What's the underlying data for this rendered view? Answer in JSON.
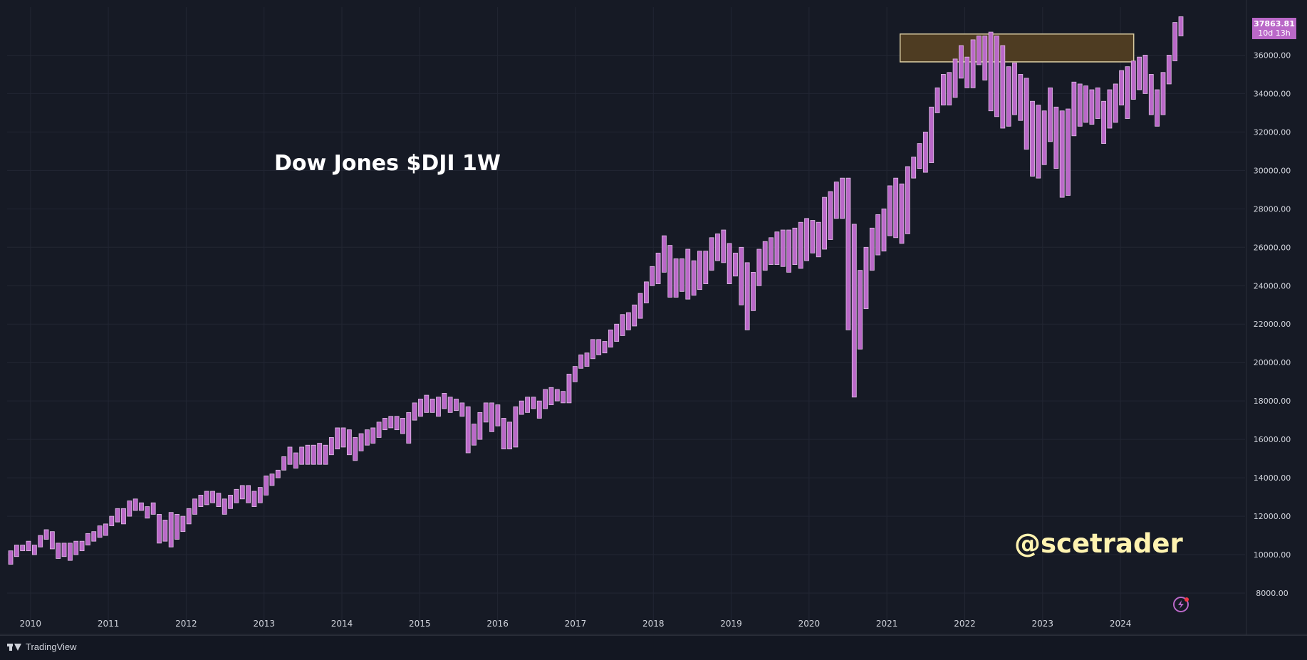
{
  "chart_data": {
    "type": "candlestick",
    "title": "Dow Jones $DJI 1W",
    "watermark_handle": "@scetrader",
    "brand": "TradingView",
    "last_price_label": "37863.81",
    "countdown_label": "10d 13h",
    "y_ticks": [
      "8000.00",
      "10000.00",
      "12000.00",
      "14000.00",
      "16000.00",
      "18000.00",
      "20000.00",
      "22000.00",
      "24000.00",
      "26000.00",
      "28000.00",
      "30000.00",
      "32000.00",
      "34000.00",
      "36000.00"
    ],
    "y_range": [
      7000,
      38500
    ],
    "x_range": [
      2009.7,
      2025.6
    ],
    "x_ticks": [
      "2010",
      "2011",
      "2012",
      "2013",
      "2014",
      "2015",
      "2016",
      "2017",
      "2018",
      "2019",
      "2020",
      "2021",
      "2022",
      "2023",
      "2024"
    ],
    "colors": {
      "background": "#161a25",
      "candle_fill": "#ba68c8",
      "candle_border": "#e1bee7",
      "zone_fill": "#4e3c22",
      "zone_border": "#d8caa0",
      "title": "#ffffff",
      "handle": "#fff3b0",
      "axis_text": "#d1d4dc",
      "grid": "#222633"
    },
    "resistance_zone": {
      "x_start": 2021.17,
      "x_end": 2024.17,
      "y_low": 35650,
      "y_high": 37100
    },
    "candles": [
      [
        9500,
        10200
      ],
      [
        9900,
        10500
      ],
      [
        10200,
        10500
      ],
      [
        10200,
        10700
      ],
      [
        10000,
        10500
      ],
      [
        10400,
        11000
      ],
      [
        10800,
        11300
      ],
      [
        10300,
        11200
      ],
      [
        9800,
        10600
      ],
      [
        9900,
        10600
      ],
      [
        9700,
        10600
      ],
      [
        10000,
        10700
      ],
      [
        10200,
        10700
      ],
      [
        10500,
        11100
      ],
      [
        10700,
        11200
      ],
      [
        10900,
        11500
      ],
      [
        11000,
        11600
      ],
      [
        11500,
        12000
      ],
      [
        11700,
        12400
      ],
      [
        11600,
        12400
      ],
      [
        12000,
        12800
      ],
      [
        12300,
        12900
      ],
      [
        12300,
        12700
      ],
      [
        11900,
        12500
      ],
      [
        12100,
        12700
      ],
      [
        10600,
        12100
      ],
      [
        10700,
        11800
      ],
      [
        10400,
        12200
      ],
      [
        10800,
        12100
      ],
      [
        11200,
        12000
      ],
      [
        11600,
        12400
      ],
      [
        12100,
        12900
      ],
      [
        12500,
        13100
      ],
      [
        12600,
        13300
      ],
      [
        12700,
        13300
      ],
      [
        12500,
        13200
      ],
      [
        12100,
        12900
      ],
      [
        12400,
        13100
      ],
      [
        12700,
        13400
      ],
      [
        12900,
        13600
      ],
      [
        12700,
        13600
      ],
      [
        12500,
        13300
      ],
      [
        12700,
        13500
      ],
      [
        13100,
        14100
      ],
      [
        13600,
        14200
      ],
      [
        14000,
        14400
      ],
      [
        14400,
        15100
      ],
      [
        14700,
        15600
      ],
      [
        14500,
        15300
      ],
      [
        14700,
        15600
      ],
      [
        14700,
        15700
      ],
      [
        14700,
        15700
      ],
      [
        14700,
        15800
      ],
      [
        14700,
        15700
      ],
      [
        15200,
        16100
      ],
      [
        15500,
        16600
      ],
      [
        15600,
        16600
      ],
      [
        15200,
        16500
      ],
      [
        14900,
        16100
      ],
      [
        15400,
        16300
      ],
      [
        15700,
        16500
      ],
      [
        15800,
        16600
      ],
      [
        16100,
        16900
      ],
      [
        16500,
        17100
      ],
      [
        16600,
        17200
      ],
      [
        16500,
        17200
      ],
      [
        16300,
        17100
      ],
      [
        15800,
        17400
      ],
      [
        17000,
        17900
      ],
      [
        17200,
        18100
      ],
      [
        17400,
        18300
      ],
      [
        17400,
        18100
      ],
      [
        17200,
        18200
      ],
      [
        17600,
        18400
      ],
      [
        17400,
        18200
      ],
      [
        17500,
        18100
      ],
      [
        17200,
        17900
      ],
      [
        15300,
        17700
      ],
      [
        15700,
        16800
      ],
      [
        16000,
        17400
      ],
      [
        16900,
        17900
      ],
      [
        16400,
        17900
      ],
      [
        16700,
        17800
      ],
      [
        15500,
        17100
      ],
      [
        15500,
        16900
      ],
      [
        15600,
        17700
      ],
      [
        17300,
        18000
      ],
      [
        17400,
        18200
      ],
      [
        17600,
        18200
      ],
      [
        17100,
        18000
      ],
      [
        17600,
        18600
      ],
      [
        17800,
        18700
      ],
      [
        18000,
        18600
      ],
      [
        17900,
        18500
      ],
      [
        17900,
        19400
      ],
      [
        19000,
        19800
      ],
      [
        19700,
        20400
      ],
      [
        19800,
        20500
      ],
      [
        20200,
        21200
      ],
      [
        20400,
        21200
      ],
      [
        20500,
        21100
      ],
      [
        20800,
        21700
      ],
      [
        21100,
        22000
      ],
      [
        21400,
        22500
      ],
      [
        21700,
        22600
      ],
      [
        21900,
        23000
      ],
      [
        22300,
        23600
      ],
      [
        23100,
        24200
      ],
      [
        24000,
        25000
      ],
      [
        24100,
        25700
      ],
      [
        24700,
        26600
      ],
      [
        23400,
        26100
      ],
      [
        23400,
        25400
      ],
      [
        23700,
        25400
      ],
      [
        23300,
        25900
      ],
      [
        23500,
        25300
      ],
      [
        23800,
        25800
      ],
      [
        24100,
        25800
      ],
      [
        24800,
        26500
      ],
      [
        25300,
        26700
      ],
      [
        25200,
        26900
      ],
      [
        24100,
        26200
      ],
      [
        24500,
        25700
      ],
      [
        23000,
        26000
      ],
      [
        21700,
        25200
      ],
      [
        22700,
        24700
      ],
      [
        24000,
        25900
      ],
      [
        24800,
        26300
      ],
      [
        25100,
        26500
      ],
      [
        25100,
        26800
      ],
      [
        25000,
        26900
      ],
      [
        24700,
        26900
      ],
      [
        25100,
        27000
      ],
      [
        24900,
        27300
      ],
      [
        25300,
        27500
      ],
      [
        25700,
        27400
      ],
      [
        25500,
        27300
      ],
      [
        25900,
        28600
      ],
      [
        26400,
        28900
      ],
      [
        27500,
        29400
      ],
      [
        27500,
        29600
      ],
      [
        21700,
        29600
      ],
      [
        18200,
        27200
      ],
      [
        20700,
        24800
      ],
      [
        22800,
        26000
      ],
      [
        24800,
        27000
      ],
      [
        25600,
        27700
      ],
      [
        25800,
        28000
      ],
      [
        26600,
        29200
      ],
      [
        26500,
        29600
      ],
      [
        26200,
        29300
      ],
      [
        26700,
        30200
      ],
      [
        29600,
        30700
      ],
      [
        30100,
        31400
      ],
      [
        29900,
        32000
      ],
      [
        30400,
        33300
      ],
      [
        33000,
        34300
      ],
      [
        33400,
        35000
      ],
      [
        33400,
        35100
      ],
      [
        33800,
        35800
      ],
      [
        34800,
        36500
      ],
      [
        34300,
        35900
      ],
      [
        34300,
        36800
      ],
      [
        35500,
        37000
      ],
      [
        34700,
        37000
      ],
      [
        33100,
        37200
      ],
      [
        32800,
        37000
      ],
      [
        32200,
        36500
      ],
      [
        32300,
        35400
      ],
      [
        32900,
        35600
      ],
      [
        32600,
        35000
      ],
      [
        31100,
        34800
      ],
      [
        29700,
        33600
      ],
      [
        29600,
        33400
      ],
      [
        30300,
        33100
      ],
      [
        31500,
        34300
      ],
      [
        30100,
        33300
      ],
      [
        28600,
        33100
      ],
      [
        28700,
        33200
      ],
      [
        31800,
        34600
      ],
      [
        32300,
        34500
      ],
      [
        32500,
        34400
      ],
      [
        32400,
        34200
      ],
      [
        32700,
        34300
      ],
      [
        31400,
        33600
      ],
      [
        32200,
        34200
      ],
      [
        32500,
        34500
      ],
      [
        33400,
        35200
      ],
      [
        32700,
        35400
      ],
      [
        33700,
        35700
      ],
      [
        34200,
        35900
      ],
      [
        34000,
        36000
      ],
      [
        32900,
        35000
      ],
      [
        32300,
        34200
      ],
      [
        32900,
        35100
      ],
      [
        34500,
        36000
      ],
      [
        35700,
        37700
      ],
      [
        37000,
        38000
      ]
    ]
  }
}
